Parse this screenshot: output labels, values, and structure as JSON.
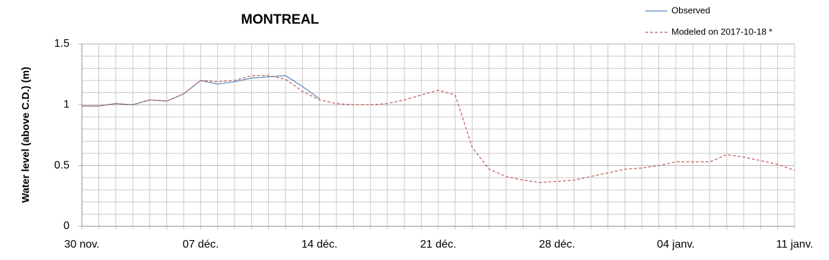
{
  "chart_data": {
    "type": "line",
    "title": "MONTREAL",
    "y_label": "Water level (above C.D.) (m)",
    "categories": [
      "30 nov.",
      null,
      null,
      null,
      null,
      null,
      null,
      "07 déc.",
      null,
      null,
      null,
      null,
      null,
      null,
      "14 déc.",
      null,
      null,
      null,
      null,
      null,
      null,
      "21 déc.",
      null,
      null,
      null,
      null,
      null,
      null,
      "28 déc.",
      null,
      null,
      null,
      null,
      null,
      null,
      "04 janv.",
      null,
      null,
      null,
      null,
      null,
      null,
      "11 janv."
    ],
    "series": [
      {
        "name": "Observed",
        "color": "#4f81bd",
        "dashed": false,
        "values": [
          0.99,
          0.99,
          1.01,
          1.0,
          1.04,
          1.03,
          1.09,
          1.2,
          1.17,
          1.19,
          1.22,
          1.23,
          1.24,
          1.15,
          1.05,
          null,
          null,
          null,
          null,
          null,
          null,
          null,
          null,
          null,
          null,
          null,
          null,
          null,
          null,
          null,
          null,
          null,
          null,
          null,
          null,
          null,
          null,
          null,
          null,
          null,
          null,
          null,
          null
        ]
      },
      {
        "name": "Modeled on 2017-10-18 *",
        "color": "#c0504d",
        "dashed": true,
        "values": [
          0.99,
          0.99,
          1.01,
          1.0,
          1.04,
          1.03,
          1.09,
          1.2,
          1.19,
          1.2,
          1.24,
          1.24,
          1.21,
          1.11,
          1.04,
          1.01,
          1.0,
          1.0,
          1.01,
          1.04,
          1.08,
          1.12,
          1.08,
          0.65,
          0.47,
          0.41,
          0.38,
          0.36,
          0.37,
          0.38,
          0.41,
          0.44,
          0.47,
          0.48,
          0.5,
          0.53,
          0.53,
          0.53,
          0.59,
          0.57,
          0.54,
          0.51,
          0.46
        ]
      }
    ],
    "ylim": [
      0,
      1.5
    ],
    "yticks": [
      0,
      0.5,
      1,
      1.5
    ],
    "y_minor_ticks": [
      0.1,
      0.2,
      0.3,
      0.4,
      0.6,
      0.7,
      0.8,
      0.9,
      1.1,
      1.2,
      1.3,
      1.4
    ],
    "grid": true,
    "legend": "top-right"
  }
}
